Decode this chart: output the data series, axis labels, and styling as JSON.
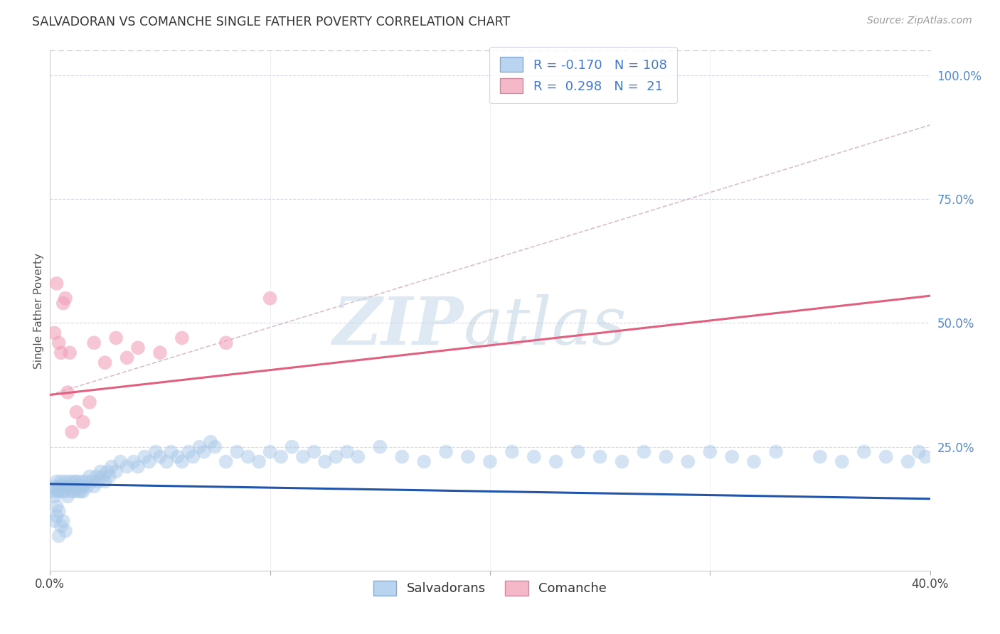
{
  "title": "SALVADORAN VS COMANCHE SINGLE FATHER POVERTY CORRELATION CHART",
  "source": "Source: ZipAtlas.com",
  "ylabel": "Single Father Poverty",
  "right_yticks": [
    "100.0%",
    "75.0%",
    "50.0%",
    "25.0%"
  ],
  "right_ytick_vals": [
    1.0,
    0.75,
    0.5,
    0.25
  ],
  "watermark_zip": "ZIP",
  "watermark_atlas": "atlas",
  "legend_line1": "R = -0.170   N = 108",
  "legend_line2": "R =  0.298   N =  21",
  "blue_color": "#a8c8e8",
  "blue_line_color": "#2255aa",
  "pink_color": "#f0a0b8",
  "pink_line_color": "#e06080",
  "dashed_line_color": "#d0b0c0",
  "background_color": "#ffffff",
  "grid_color": "#d8d8e4",
  "xlim": [
    0.0,
    0.4
  ],
  "ylim": [
    0.0,
    1.05
  ],
  "blue_trend": [
    0.175,
    0.145
  ],
  "pink_trend": [
    0.355,
    0.555
  ],
  "dashed_trend": [
    0.355,
    0.9
  ],
  "blue_x": [
    0.001,
    0.002,
    0.002,
    0.003,
    0.003,
    0.004,
    0.004,
    0.005,
    0.005,
    0.006,
    0.006,
    0.007,
    0.007,
    0.008,
    0.008,
    0.009,
    0.009,
    0.01,
    0.01,
    0.011,
    0.011,
    0.012,
    0.012,
    0.013,
    0.013,
    0.014,
    0.014,
    0.015,
    0.015,
    0.016,
    0.017,
    0.018,
    0.019,
    0.02,
    0.021,
    0.022,
    0.023,
    0.024,
    0.025,
    0.026,
    0.027,
    0.028,
    0.03,
    0.032,
    0.035,
    0.038,
    0.04,
    0.043,
    0.045,
    0.048,
    0.05,
    0.053,
    0.055,
    0.058,
    0.06,
    0.063,
    0.065,
    0.068,
    0.07,
    0.073,
    0.075,
    0.08,
    0.085,
    0.09,
    0.095,
    0.1,
    0.105,
    0.11,
    0.115,
    0.12,
    0.125,
    0.13,
    0.135,
    0.14,
    0.15,
    0.16,
    0.17,
    0.18,
    0.19,
    0.2,
    0.21,
    0.22,
    0.23,
    0.24,
    0.25,
    0.26,
    0.27,
    0.28,
    0.29,
    0.3,
    0.31,
    0.32,
    0.33,
    0.35,
    0.36,
    0.37,
    0.38,
    0.39,
    0.395,
    0.398,
    0.002,
    0.003,
    0.004,
    0.005,
    0.006,
    0.007,
    0.003,
    0.004
  ],
  "blue_y": [
    0.16,
    0.17,
    0.15,
    0.16,
    0.18,
    0.17,
    0.16,
    0.18,
    0.17,
    0.16,
    0.17,
    0.18,
    0.16,
    0.17,
    0.15,
    0.18,
    0.17,
    0.16,
    0.17,
    0.18,
    0.16,
    0.17,
    0.18,
    0.16,
    0.17,
    0.16,
    0.18,
    0.17,
    0.16,
    0.18,
    0.17,
    0.19,
    0.18,
    0.17,
    0.19,
    0.18,
    0.2,
    0.19,
    0.18,
    0.2,
    0.19,
    0.21,
    0.2,
    0.22,
    0.21,
    0.22,
    0.21,
    0.23,
    0.22,
    0.24,
    0.23,
    0.22,
    0.24,
    0.23,
    0.22,
    0.24,
    0.23,
    0.25,
    0.24,
    0.26,
    0.25,
    0.22,
    0.24,
    0.23,
    0.22,
    0.24,
    0.23,
    0.25,
    0.23,
    0.24,
    0.22,
    0.23,
    0.24,
    0.23,
    0.25,
    0.23,
    0.22,
    0.24,
    0.23,
    0.22,
    0.24,
    0.23,
    0.22,
    0.24,
    0.23,
    0.22,
    0.24,
    0.23,
    0.22,
    0.24,
    0.23,
    0.22,
    0.24,
    0.23,
    0.22,
    0.24,
    0.23,
    0.22,
    0.24,
    0.23,
    0.1,
    0.11,
    0.12,
    0.09,
    0.1,
    0.08,
    0.13,
    0.07
  ],
  "pink_x": [
    0.002,
    0.003,
    0.004,
    0.005,
    0.006,
    0.007,
    0.008,
    0.009,
    0.01,
    0.012,
    0.015,
    0.018,
    0.02,
    0.025,
    0.03,
    0.035,
    0.04,
    0.05,
    0.06,
    0.08,
    0.1
  ],
  "pink_y": [
    0.48,
    0.58,
    0.46,
    0.44,
    0.54,
    0.55,
    0.36,
    0.44,
    0.28,
    0.32,
    0.3,
    0.34,
    0.46,
    0.42,
    0.47,
    0.43,
    0.45,
    0.44,
    0.47,
    0.46,
    0.55
  ]
}
